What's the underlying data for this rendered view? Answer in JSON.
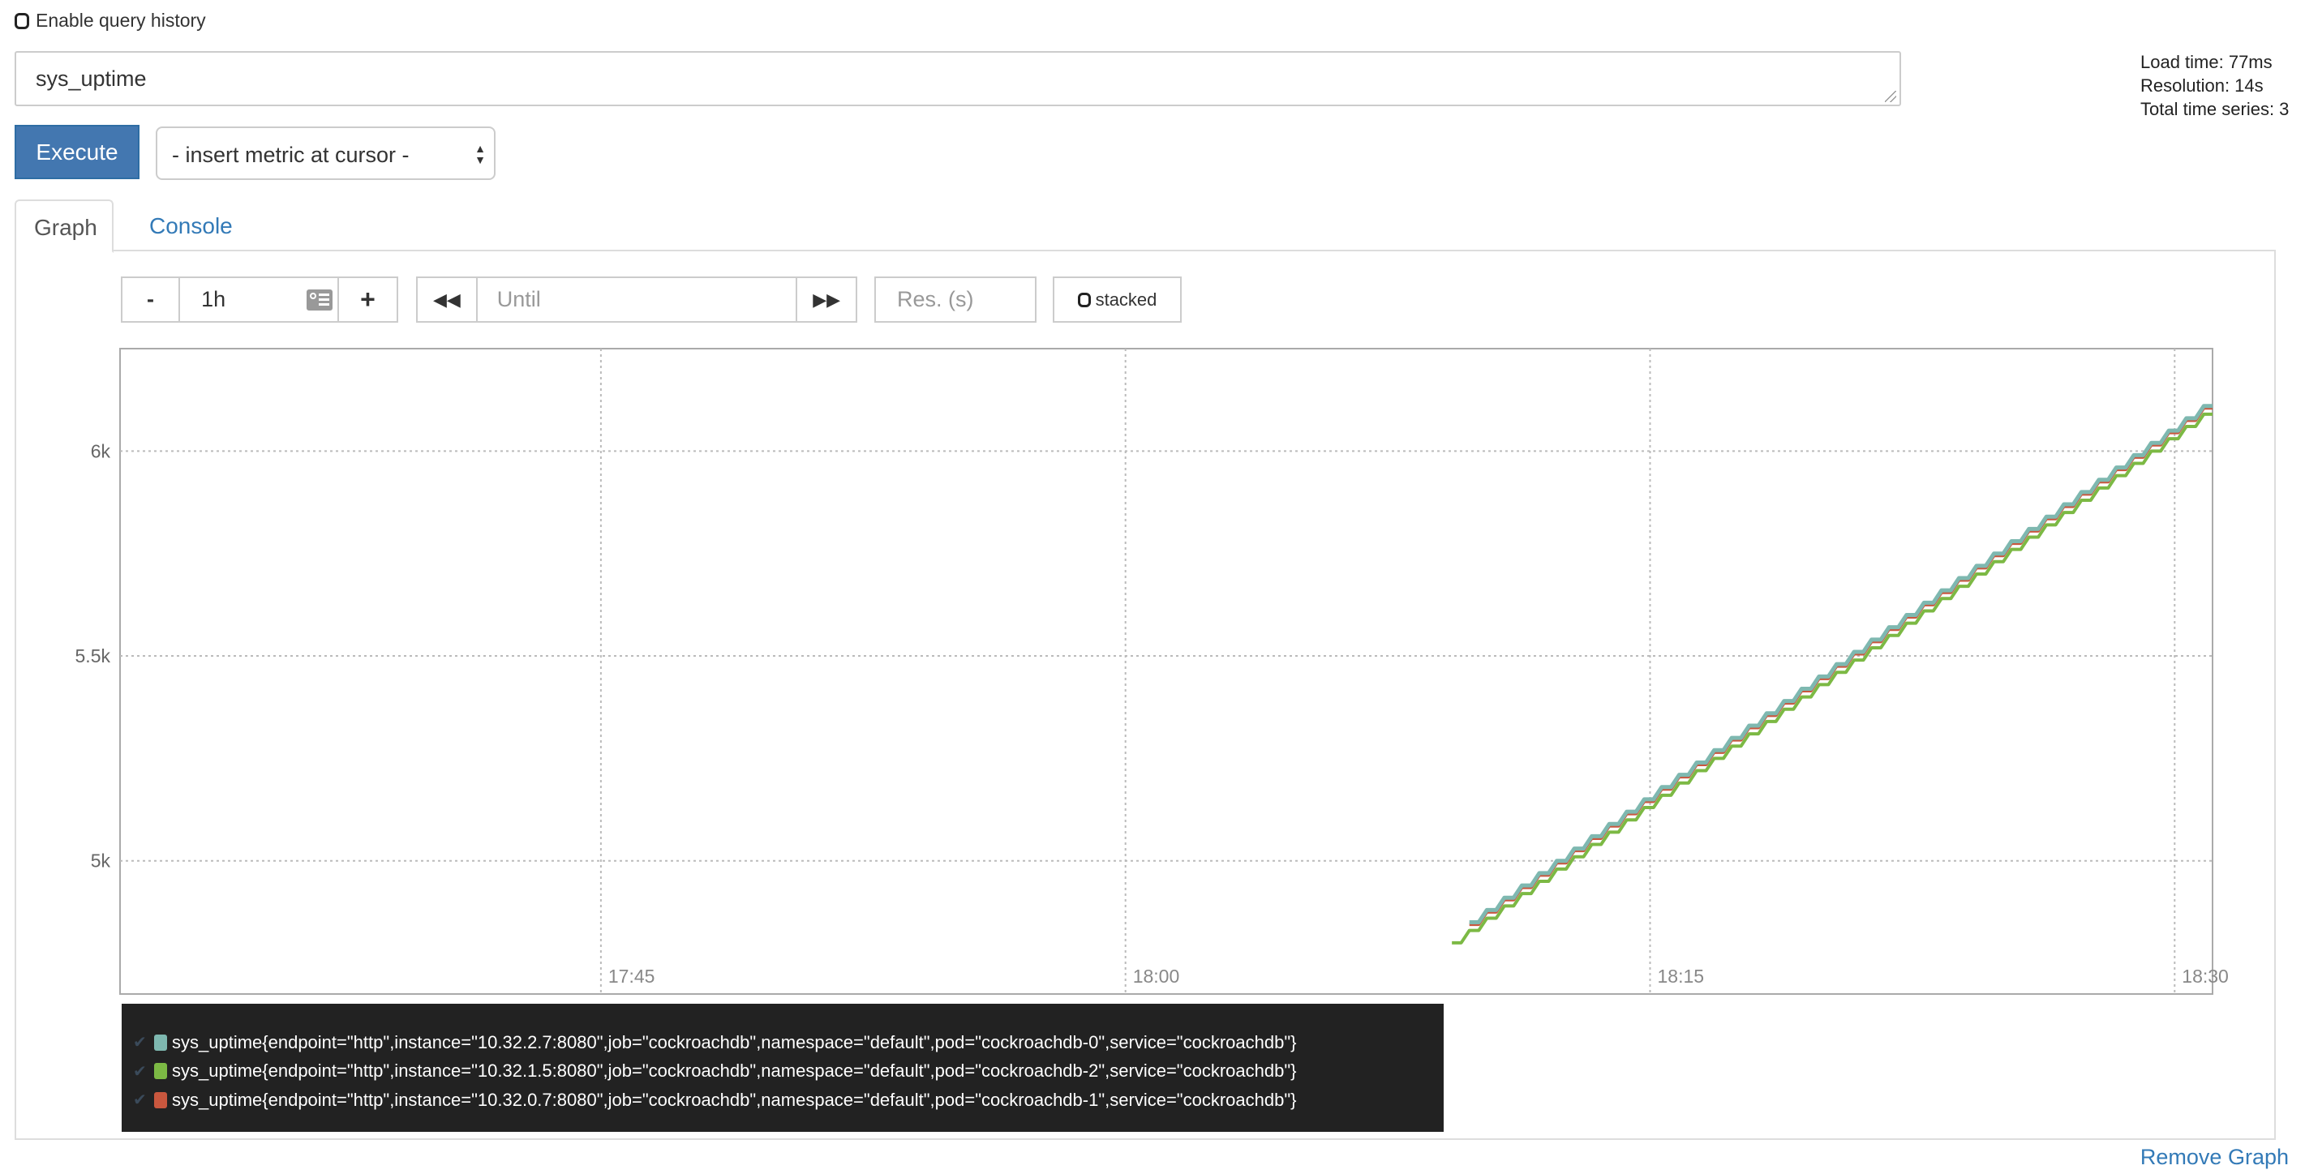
{
  "query_history": {
    "label": "Enable query history",
    "checked": false
  },
  "expression": {
    "value": "sys_uptime"
  },
  "stats": {
    "load_time": "Load time: 77ms",
    "resolution": "Resolution: 14s",
    "total_series": "Total time series: 3"
  },
  "execute_label": "Execute",
  "metric_select": {
    "selected": "- insert metric at cursor -"
  },
  "tabs": [
    {
      "label": "Graph",
      "active": true
    },
    {
      "label": "Console",
      "active": false
    }
  ],
  "controls": {
    "range_minus": "-",
    "range_value": "1h",
    "range_plus": "+",
    "back_icon": "fast-backward-icon",
    "until_placeholder": "Until",
    "forward_icon": "fast-forward-icon",
    "res_placeholder": "Res. (s)",
    "stacked_label": "stacked",
    "stacked_checked": false
  },
  "chart_data": {
    "type": "line",
    "xlim": [
      "17:31:15",
      "18:31:05"
    ],
    "ylim": [
      4675,
      6250
    ],
    "x_ticks": [
      "17:45",
      "18:00",
      "18:15",
      "18:30"
    ],
    "y_ticks": [
      {
        "value": 5000,
        "label": "5k"
      },
      {
        "value": 5500,
        "label": "5.5k"
      },
      {
        "value": 6000,
        "label": "6k"
      }
    ],
    "grid": true,
    "step_seconds": 30,
    "series": [
      {
        "name": "sys_uptime{endpoint=\"http\",instance=\"10.32.2.7:8080\",job=\"cockroachdb\",namespace=\"default\",pod=\"cockroachdb-0\",service=\"cockroachdb\"}",
        "color": "#7eb8b0",
        "start": "18:09:50",
        "values": [
          4850,
          4880,
          4910,
          4940,
          4970,
          5000,
          5030,
          5060,
          5090,
          5120,
          5150,
          5180,
          5210,
          5240,
          5270,
          5300,
          5330,
          5360,
          5390,
          5420,
          5450,
          5480,
          5510,
          5540,
          5570,
          5600,
          5630,
          5660,
          5690,
          5720,
          5750,
          5780,
          5810,
          5840,
          5870,
          5900,
          5930,
          5960,
          5990,
          6020,
          6050,
          6080,
          6110
        ]
      },
      {
        "name": "sys_uptime{endpoint=\"http\",instance=\"10.32.1.5:8080\",job=\"cockroachdb\",namespace=\"default\",pod=\"cockroachdb-2\",service=\"cockroachdb\"}",
        "color": "#7cb944",
        "start": "18:09:20",
        "values": [
          4800,
          4830,
          4860,
          4890,
          4920,
          4950,
          4980,
          5010,
          5040,
          5070,
          5100,
          5130,
          5160,
          5190,
          5220,
          5250,
          5280,
          5310,
          5340,
          5370,
          5400,
          5430,
          5460,
          5490,
          5520,
          5550,
          5580,
          5610,
          5640,
          5670,
          5700,
          5730,
          5760,
          5790,
          5820,
          5850,
          5880,
          5910,
          5940,
          5970,
          6000,
          6030,
          6060,
          6090
        ]
      },
      {
        "name": "sys_uptime{endpoint=\"http\",instance=\"10.32.0.7:8080\",job=\"cockroachdb\",namespace=\"default\",pod=\"cockroachdb-1\",service=\"cockroachdb\"}",
        "color": "#c9573e",
        "start": "18:09:50",
        "values": [
          4845,
          4875,
          4905,
          4935,
          4965,
          4995,
          5025,
          5055,
          5085,
          5115,
          5145,
          5175,
          5205,
          5235,
          5265,
          5295,
          5325,
          5355,
          5385,
          5415,
          5445,
          5475,
          5505,
          5535,
          5565,
          5595,
          5625,
          5655,
          5685,
          5715,
          5745,
          5775,
          5805,
          5835,
          5865,
          5895,
          5925,
          5955,
          5985,
          6015,
          6045,
          6075,
          6105
        ]
      }
    ]
  },
  "remove_graph": "Remove Graph"
}
